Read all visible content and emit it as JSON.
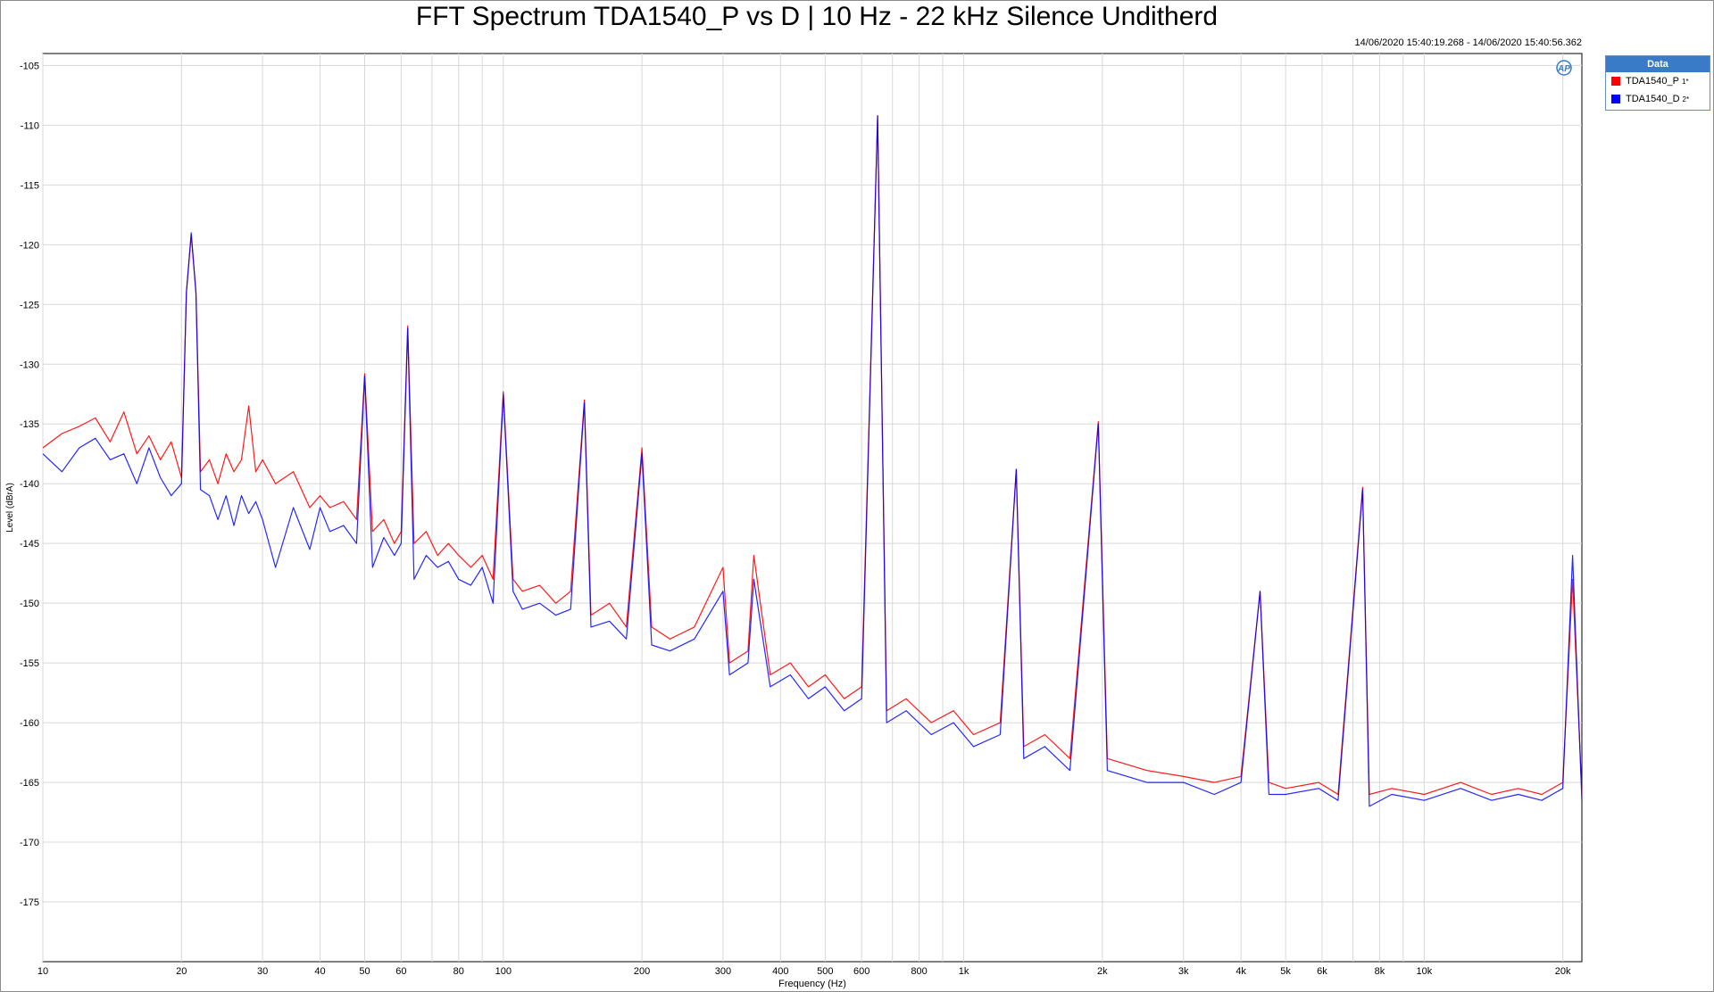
{
  "chart_data": {
    "type": "line",
    "title": "FFT Spectrum TDA1540_P vs D | 10 Hz - 22 kHz  Silence Unditherd",
    "timestamp": "14/06/2020 15:40:19.268 - 14/06/2020 15:40:56.362",
    "xlabel": "Frequency (Hz)",
    "ylabel": "Level (dBrA)",
    "x_scale": "log",
    "xlim": [
      10,
      22000
    ],
    "ylim": [
      -180,
      -104
    ],
    "grid": true,
    "legend_title": "Data",
    "legend_position": "right",
    "y_ticks": [
      -105,
      -110,
      -115,
      -120,
      -125,
      -130,
      -135,
      -140,
      -145,
      -150,
      -155,
      -160,
      -165,
      -170,
      -175
    ],
    "x_ticks": [
      {
        "v": 10,
        "label": "10"
      },
      {
        "v": 20,
        "label": "20"
      },
      {
        "v": 30,
        "label": "30"
      },
      {
        "v": 40,
        "label": "40"
      },
      {
        "v": 50,
        "label": "50"
      },
      {
        "v": 60,
        "label": "60"
      },
      {
        "v": 80,
        "label": "80"
      },
      {
        "v": 100,
        "label": "100"
      },
      {
        "v": 200,
        "label": "200"
      },
      {
        "v": 300,
        "label": "300"
      },
      {
        "v": 400,
        "label": "400"
      },
      {
        "v": 500,
        "label": "500"
      },
      {
        "v": 600,
        "label": "600"
      },
      {
        "v": 800,
        "label": "800"
      },
      {
        "v": 1000,
        "label": "1k"
      },
      {
        "v": 2000,
        "label": "2k"
      },
      {
        "v": 3000,
        "label": "3k"
      },
      {
        "v": 4000,
        "label": "4k"
      },
      {
        "v": 5000,
        "label": "5k"
      },
      {
        "v": 6000,
        "label": "6k"
      },
      {
        "v": 8000,
        "label": "8k"
      },
      {
        "v": 10000,
        "label": "10k"
      },
      {
        "v": 20000,
        "label": "20k"
      }
    ],
    "series": [
      {
        "name": "TDA1540_P",
        "legend_suffix": "1*",
        "color": "#ff0000",
        "points": [
          [
            10,
            -137
          ],
          [
            11,
            -135.8
          ],
          [
            12,
            -135.2
          ],
          [
            13,
            -134.5
          ],
          [
            14,
            -136.5
          ],
          [
            15,
            -134
          ],
          [
            16,
            -137.5
          ],
          [
            17,
            -136
          ],
          [
            18,
            -138
          ],
          [
            19,
            -136.5
          ],
          [
            20,
            -139.5
          ],
          [
            20.5,
            -124
          ],
          [
            21,
            -119.2
          ],
          [
            21.5,
            -124
          ],
          [
            22,
            -139
          ],
          [
            23,
            -138
          ],
          [
            24,
            -140
          ],
          [
            25,
            -137.5
          ],
          [
            26,
            -139
          ],
          [
            27,
            -138
          ],
          [
            28,
            -133.5
          ],
          [
            29,
            -139
          ],
          [
            30,
            -138
          ],
          [
            32,
            -140
          ],
          [
            35,
            -139
          ],
          [
            38,
            -142
          ],
          [
            40,
            -141
          ],
          [
            42,
            -142
          ],
          [
            45,
            -141.5
          ],
          [
            48,
            -143
          ],
          [
            50,
            -130.8
          ],
          [
            52,
            -144
          ],
          [
            55,
            -143
          ],
          [
            58,
            -145
          ],
          [
            60,
            -144
          ],
          [
            62,
            -126.8
          ],
          [
            64,
            -145
          ],
          [
            68,
            -144
          ],
          [
            72,
            -146
          ],
          [
            76,
            -145
          ],
          [
            80,
            -146
          ],
          [
            85,
            -147
          ],
          [
            90,
            -146
          ],
          [
            95,
            -148
          ],
          [
            100,
            -132.3
          ],
          [
            105,
            -148
          ],
          [
            110,
            -149
          ],
          [
            120,
            -148.5
          ],
          [
            130,
            -150
          ],
          [
            140,
            -149
          ],
          [
            150,
            -133
          ],
          [
            155,
            -151
          ],
          [
            170,
            -150
          ],
          [
            185,
            -152
          ],
          [
            200,
            -137
          ],
          [
            210,
            -152
          ],
          [
            230,
            -153
          ],
          [
            260,
            -152
          ],
          [
            300,
            -147
          ],
          [
            310,
            -155
          ],
          [
            340,
            -154
          ],
          [
            350,
            -146
          ],
          [
            380,
            -156
          ],
          [
            420,
            -155
          ],
          [
            460,
            -157
          ],
          [
            500,
            -156
          ],
          [
            550,
            -158
          ],
          [
            600,
            -157
          ],
          [
            650,
            -109.2
          ],
          [
            680,
            -159
          ],
          [
            750,
            -158
          ],
          [
            850,
            -160
          ],
          [
            950,
            -159
          ],
          [
            1050,
            -161
          ],
          [
            1200,
            -160
          ],
          [
            1300,
            -138.8
          ],
          [
            1350,
            -162
          ],
          [
            1500,
            -161
          ],
          [
            1700,
            -163
          ],
          [
            1960,
            -134.8
          ],
          [
            2050,
            -163
          ],
          [
            2500,
            -164
          ],
          [
            3000,
            -164.5
          ],
          [
            3500,
            -165
          ],
          [
            4000,
            -164.5
          ],
          [
            4400,
            -149
          ],
          [
            4600,
            -165
          ],
          [
            5000,
            -165.5
          ],
          [
            5900,
            -165
          ],
          [
            6500,
            -166
          ],
          [
            7350,
            -140.3
          ],
          [
            7600,
            -166
          ],
          [
            8500,
            -165.5
          ],
          [
            10000,
            -166
          ],
          [
            12000,
            -165
          ],
          [
            14000,
            -166
          ],
          [
            16000,
            -165.5
          ],
          [
            18000,
            -166
          ],
          [
            20000,
            -165
          ],
          [
            21000,
            -148
          ],
          [
            22000,
            -166
          ]
        ]
      },
      {
        "name": "TDA1540_D",
        "legend_suffix": "2*",
        "color": "#0000ff",
        "points": [
          [
            10,
            -137.5
          ],
          [
            11,
            -139
          ],
          [
            12,
            -137
          ],
          [
            13,
            -136.2
          ],
          [
            14,
            -138
          ],
          [
            15,
            -137.5
          ],
          [
            16,
            -140
          ],
          [
            17,
            -137
          ],
          [
            18,
            -139.5
          ],
          [
            19,
            -141
          ],
          [
            20,
            -140
          ],
          [
            20.5,
            -124
          ],
          [
            21,
            -119
          ],
          [
            21.5,
            -124
          ],
          [
            22,
            -140.5
          ],
          [
            23,
            -141
          ],
          [
            24,
            -143
          ],
          [
            25,
            -141
          ],
          [
            26,
            -143.5
          ],
          [
            27,
            -141
          ],
          [
            28,
            -142.5
          ],
          [
            29,
            -141.5
          ],
          [
            30,
            -143
          ],
          [
            32,
            -147
          ],
          [
            35,
            -142
          ],
          [
            38,
            -145.5
          ],
          [
            40,
            -142
          ],
          [
            42,
            -144
          ],
          [
            45,
            -143.5
          ],
          [
            48,
            -145
          ],
          [
            50,
            -131
          ],
          [
            52,
            -147
          ],
          [
            55,
            -144.5
          ],
          [
            58,
            -146
          ],
          [
            60,
            -145
          ],
          [
            62,
            -127
          ],
          [
            64,
            -148
          ],
          [
            68,
            -146
          ],
          [
            72,
            -147
          ],
          [
            76,
            -146.5
          ],
          [
            80,
            -148
          ],
          [
            85,
            -148.5
          ],
          [
            90,
            -147
          ],
          [
            95,
            -150
          ],
          [
            100,
            -132.5
          ],
          [
            105,
            -149
          ],
          [
            110,
            -150.5
          ],
          [
            120,
            -150
          ],
          [
            130,
            -151
          ],
          [
            140,
            -150.5
          ],
          [
            150,
            -133.2
          ],
          [
            155,
            -152
          ],
          [
            170,
            -151.5
          ],
          [
            185,
            -153
          ],
          [
            200,
            -137.5
          ],
          [
            210,
            -153.5
          ],
          [
            230,
            -154
          ],
          [
            260,
            -153
          ],
          [
            300,
            -149
          ],
          [
            310,
            -156
          ],
          [
            340,
            -155
          ],
          [
            350,
            -148
          ],
          [
            380,
            -157
          ],
          [
            420,
            -156
          ],
          [
            460,
            -158
          ],
          [
            500,
            -157
          ],
          [
            550,
            -159
          ],
          [
            600,
            -158
          ],
          [
            650,
            -109.2
          ],
          [
            680,
            -160
          ],
          [
            750,
            -159
          ],
          [
            850,
            -161
          ],
          [
            950,
            -160
          ],
          [
            1050,
            -162
          ],
          [
            1200,
            -161
          ],
          [
            1300,
            -138.8
          ],
          [
            1350,
            -163
          ],
          [
            1500,
            -162
          ],
          [
            1700,
            -164
          ],
          [
            1960,
            -135
          ],
          [
            2050,
            -164
          ],
          [
            2500,
            -165
          ],
          [
            3000,
            -165
          ],
          [
            3500,
            -166
          ],
          [
            4000,
            -165
          ],
          [
            4400,
            -149
          ],
          [
            4600,
            -166
          ],
          [
            5000,
            -166
          ],
          [
            5900,
            -165.5
          ],
          [
            6500,
            -166.5
          ],
          [
            7350,
            -140.5
          ],
          [
            7600,
            -167
          ],
          [
            8500,
            -166
          ],
          [
            10000,
            -166.5
          ],
          [
            12000,
            -165.5
          ],
          [
            14000,
            -166.5
          ],
          [
            16000,
            -166
          ],
          [
            18000,
            -166.5
          ],
          [
            20000,
            -165.5
          ],
          [
            21000,
            -146
          ],
          [
            22000,
            -166.5
          ]
        ]
      }
    ]
  }
}
